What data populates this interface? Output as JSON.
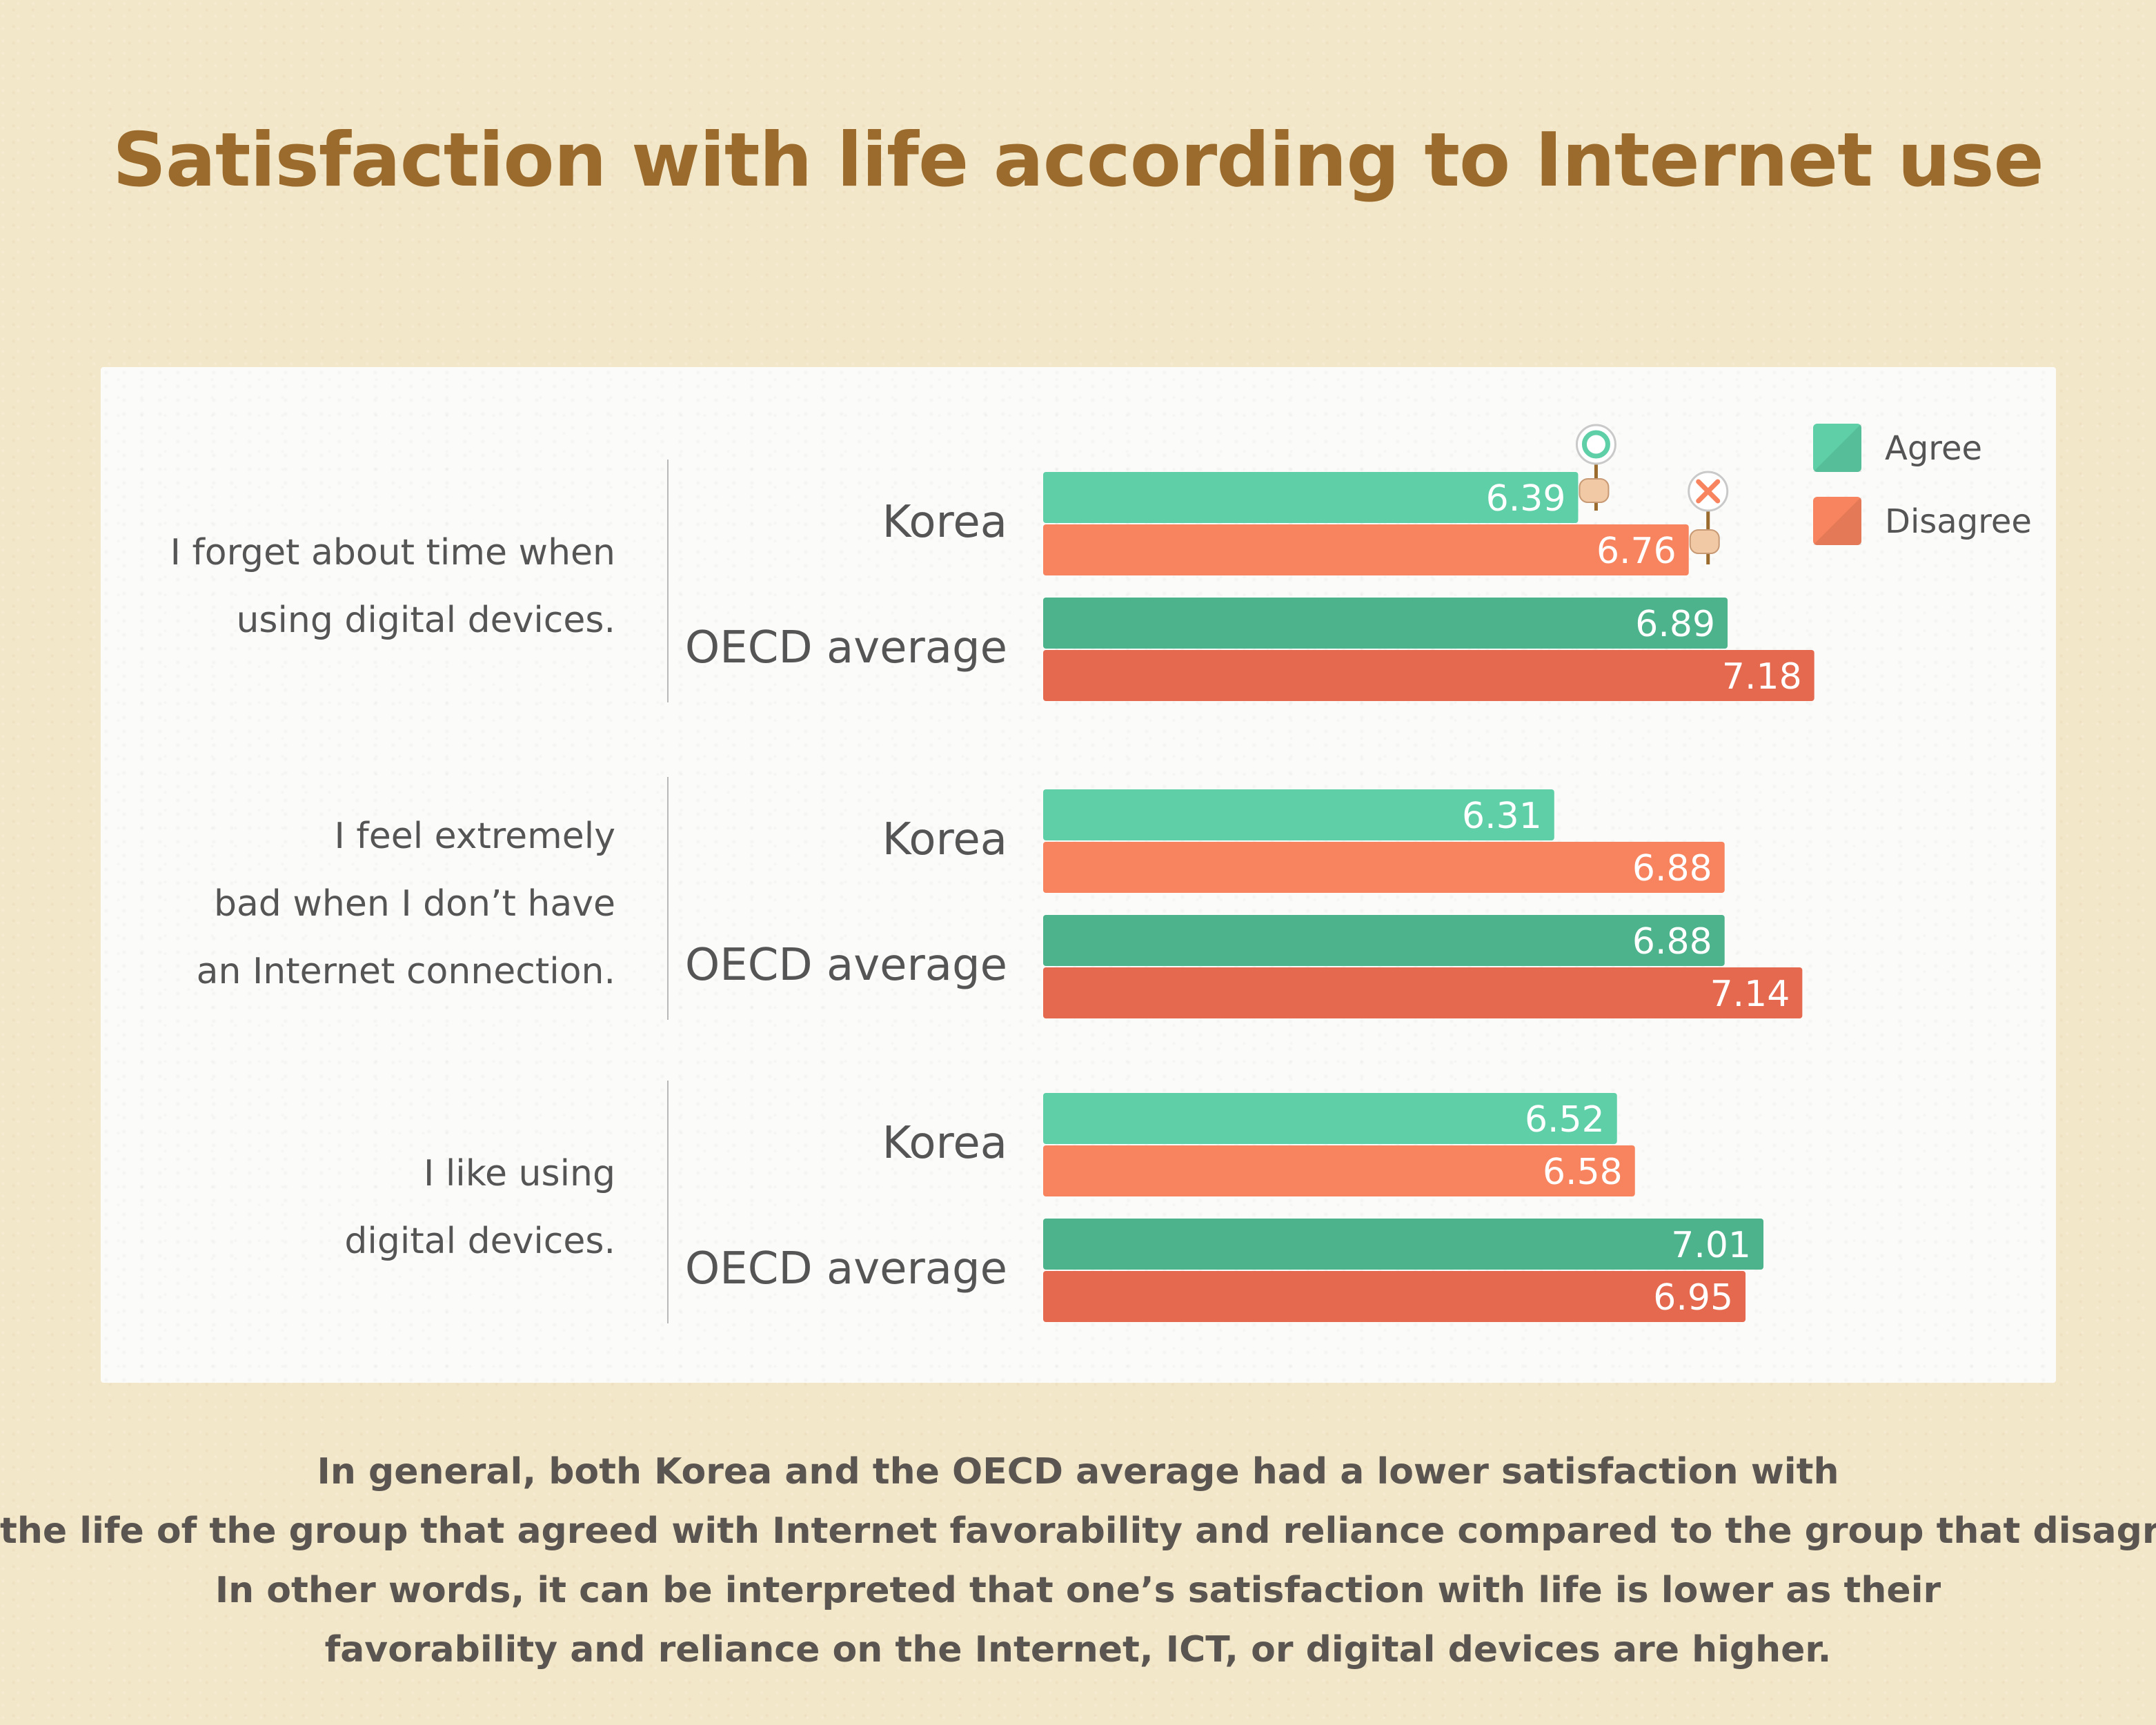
{
  "title": "Satisfaction with life according to Internet use",
  "legend": [
    {
      "label": "Agree",
      "color": "#5fcfa8"
    },
    {
      "label": "Disagree",
      "color": "#f7845e"
    }
  ],
  "colors": {
    "korea_agree": "#5fcfa8",
    "korea_disagree": "#f7845e",
    "oecd_agree": "#4db38d",
    "oecd_disagree": "#e4694f",
    "accent_title": "#9a6b2c"
  },
  "icons": {
    "agree": "circle-sign-icon",
    "disagree": "x-sign-icon"
  },
  "chart_data": {
    "type": "bar",
    "orientation": "horizontal",
    "title": "Satisfaction with life according to Internet use",
    "series_names": [
      "Agree",
      "Disagree"
    ],
    "groups": [
      {
        "question": [
          "I forget about time when",
          "using digital devices."
        ],
        "rows": [
          {
            "label": "Korea",
            "agree": 6.39,
            "disagree": 6.76
          },
          {
            "label": "OECD average",
            "agree": 6.89,
            "disagree": 7.18
          }
        ]
      },
      {
        "question": [
          "I feel extremely",
          "bad when  I don’t have",
          "an Internet connection."
        ],
        "rows": [
          {
            "label": "Korea",
            "agree": 6.31,
            "disagree": 6.88
          },
          {
            "label": "OECD average",
            "agree": 6.88,
            "disagree": 7.14
          }
        ]
      },
      {
        "question": [
          "I like using",
          "digital devices."
        ],
        "rows": [
          {
            "label": "Korea",
            "agree": 6.52,
            "disagree": 6.58
          },
          {
            "label": "OECD average",
            "agree": 7.01,
            "disagree": 6.95
          }
        ]
      }
    ],
    "xlim": [
      4.6,
      7.25
    ],
    "grid": false,
    "legend_position": "top-right"
  },
  "caption": [
    "In general, both Korea and the OECD average had a lower satisfaction with",
    "the life of the group that agreed with Internet favorability and reliance compared to the group that disagreed.",
    "In other words, it can be interpreted that one’s satisfaction with life is lower as their",
    "favorability and reliance on the Internet, ICT, or digital devices are higher."
  ]
}
